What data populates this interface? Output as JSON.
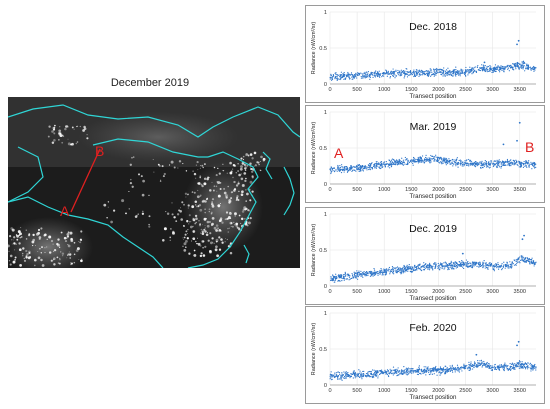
{
  "map": {
    "title": "December 2019",
    "point_a_label": "A",
    "point_b_label": "B",
    "colors": {
      "background": "#1a1a1a",
      "borders": "#2fd6d6",
      "transect": "#e02020",
      "lights": "#ffffff"
    }
  },
  "chart_data": [
    {
      "type": "scatter",
      "title": "Dec. 2018",
      "xlabel": "Transect position",
      "ylabel": "Radiance (nW/cm²/sr)",
      "xlim": [
        0,
        3800
      ],
      "ylim": [
        0,
        1
      ],
      "xticks": [
        "0",
        "500",
        "1000",
        "1500",
        "2000",
        "2500",
        "3000",
        "3500"
      ],
      "yticks": [
        "0",
        "0.5",
        "1"
      ],
      "color": "#2e75c8",
      "trend": {
        "x": [
          0,
          500,
          1000,
          1500,
          2000,
          2500,
          2800,
          3000,
          3300,
          3500,
          3800
        ],
        "y": [
          0.09,
          0.12,
          0.14,
          0.15,
          0.16,
          0.17,
          0.22,
          0.2,
          0.23,
          0.27,
          0.21
        ]
      },
      "outliers": {
        "x": [
          2850,
          3450,
          3480
        ],
        "y": [
          0.3,
          0.55,
          0.6
        ]
      },
      "markers": {
        "left": "",
        "right": ""
      }
    },
    {
      "type": "scatter",
      "title": "Mar. 2019",
      "xlabel": "Transect position",
      "ylabel": "Radiance (nW/cm²/sr)",
      "xlim": [
        0,
        3800
      ],
      "ylim": [
        0,
        1
      ],
      "xticks": [
        "0",
        "500",
        "1000",
        "1500",
        "2000",
        "2500",
        "3000",
        "3500"
      ],
      "yticks": [
        "0",
        "0.5",
        "1"
      ],
      "color": "#2e75c8",
      "trend": {
        "x": [
          0,
          500,
          1000,
          1500,
          1900,
          2300,
          2700,
          3000,
          3300,
          3500,
          3800
        ],
        "y": [
          0.2,
          0.22,
          0.27,
          0.32,
          0.35,
          0.3,
          0.28,
          0.27,
          0.3,
          0.28,
          0.28
        ]
      },
      "outliers": {
        "x": [
          3200,
          3450,
          3500
        ],
        "y": [
          0.55,
          0.6,
          0.85
        ]
      },
      "markers": {
        "left": "A",
        "right": "B"
      }
    },
    {
      "type": "scatter",
      "title": "Dec. 2019",
      "xlabel": "Transect position",
      "ylabel": "Radiance (nW/cm²/sr)",
      "xlim": [
        0,
        3800
      ],
      "ylim": [
        0,
        1
      ],
      "xticks": [
        "0",
        "500",
        "1000",
        "1500",
        "2000",
        "2500",
        "3000",
        "3500"
      ],
      "yticks": [
        "0",
        "0.5",
        "1"
      ],
      "color": "#2e75c8",
      "trend": {
        "x": [
          0,
          500,
          1000,
          1500,
          2000,
          2500,
          2800,
          3000,
          3300,
          3550,
          3800
        ],
        "y": [
          0.1,
          0.15,
          0.2,
          0.25,
          0.28,
          0.3,
          0.3,
          0.28,
          0.28,
          0.38,
          0.32
        ]
      },
      "outliers": {
        "x": [
          2450,
          3550,
          3580
        ],
        "y": [
          0.45,
          0.65,
          0.7
        ]
      },
      "markers": {
        "left": "",
        "right": ""
      }
    },
    {
      "type": "scatter",
      "title": "Feb. 2020",
      "xlabel": "Transect position",
      "ylabel": "Radiance (nW/cm²/sr)",
      "xlim": [
        0,
        3800
      ],
      "ylim": [
        0,
        1
      ],
      "xticks": [
        "0",
        "500",
        "1000",
        "1500",
        "2000",
        "2500",
        "3000",
        "3500"
      ],
      "yticks": [
        "0",
        "0.5",
        "1"
      ],
      "color": "#2e75c8",
      "trend": {
        "x": [
          0,
          500,
          1000,
          1500,
          2000,
          2500,
          2800,
          3000,
          3300,
          3500,
          3800
        ],
        "y": [
          0.12,
          0.14,
          0.17,
          0.2,
          0.2,
          0.24,
          0.3,
          0.24,
          0.25,
          0.28,
          0.24
        ]
      },
      "outliers": {
        "x": [
          2700,
          3450,
          3480
        ],
        "y": [
          0.42,
          0.55,
          0.6
        ]
      },
      "markers": {
        "left": "",
        "right": ""
      }
    }
  ]
}
